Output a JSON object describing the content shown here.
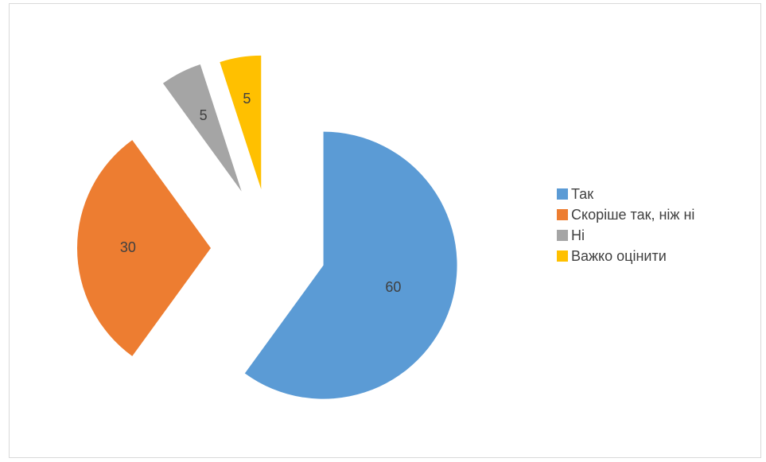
{
  "chart_data": {
    "type": "pie",
    "title": "",
    "categories": [
      "Так",
      "Скоріше так, ніж ні",
      "Ні",
      "Важко оцінити"
    ],
    "values": [
      60,
      30,
      5,
      5
    ],
    "colors": [
      "#5b9bd5",
      "#ed7d31",
      "#a5a5a5",
      "#ffc000"
    ],
    "exploded": true,
    "data_labels": [
      "60",
      "30",
      "5",
      "5"
    ],
    "legend_position": "right"
  }
}
